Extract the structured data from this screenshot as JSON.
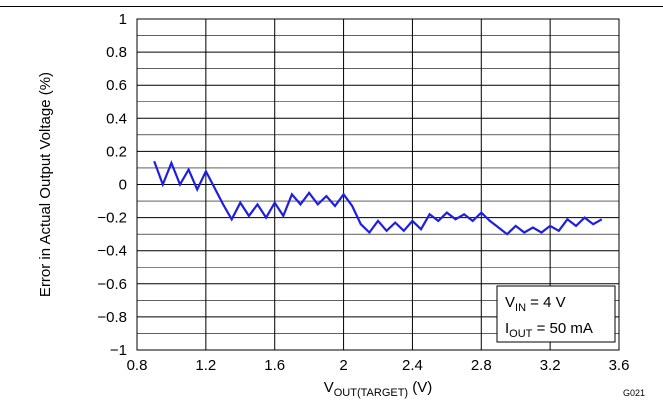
{
  "chart_data": {
    "type": "line",
    "title": "",
    "xlabel": {
      "main": "V",
      "sub": "OUT(TARGET)",
      "unit": " (V)"
    },
    "ylabel": "Error in Actual Output Voltage (%)",
    "xlim": [
      0.8,
      3.6
    ],
    "ylim": [
      -1,
      1
    ],
    "x_ticks": [
      0.8,
      1.2,
      1.6,
      2,
      2.4,
      2.8,
      3.2,
      3.6
    ],
    "x_tick_labels": [
      "0.8",
      "1.2",
      "1.6",
      "2",
      "2.4",
      "2.8",
      "3.2",
      "3.6"
    ],
    "y_ticks": [
      -1,
      -0.8,
      -0.6,
      -0.4,
      -0.2,
      0,
      0.2,
      0.4,
      0.6,
      0.8,
      1
    ],
    "y_tick_labels": [
      "−1",
      "−0.8",
      "−0.6",
      "−0.4",
      "−0.2",
      "0",
      "0.2",
      "0.4",
      "0.6",
      "0.8",
      "1"
    ],
    "minor_y_grid": true,
    "grid": true,
    "color": "#1f1fe0",
    "annotations": [
      {
        "main": "V",
        "sub": "IN",
        "rest": " = 4 V"
      },
      {
        "main": "I",
        "sub": "OUT",
        "rest": " = 50 mA"
      }
    ],
    "figure_code": "G021",
    "series": [
      {
        "x": [
          0.9,
          0.95,
          1.0,
          1.05,
          1.1,
          1.15,
          1.2,
          1.25,
          1.3,
          1.35,
          1.4,
          1.45,
          1.5,
          1.55,
          1.6,
          1.65,
          1.7,
          1.75,
          1.8,
          1.85,
          1.9,
          1.95,
          2.0,
          2.05,
          2.1,
          2.15,
          2.2,
          2.25,
          2.3,
          2.35,
          2.4,
          2.45,
          2.5,
          2.55,
          2.6,
          2.65,
          2.7,
          2.75,
          2.8,
          2.85,
          2.9,
          2.95,
          3.0,
          3.05,
          3.1,
          3.15,
          3.2,
          3.25,
          3.3,
          3.35,
          3.4,
          3.45,
          3.5
        ],
        "y": [
          0.14,
          0.0,
          0.13,
          0.0,
          0.09,
          -0.03,
          0.08,
          -0.02,
          -0.12,
          -0.21,
          -0.11,
          -0.19,
          -0.12,
          -0.2,
          -0.11,
          -0.19,
          -0.06,
          -0.12,
          -0.05,
          -0.12,
          -0.07,
          -0.13,
          -0.06,
          -0.13,
          -0.24,
          -0.29,
          -0.22,
          -0.28,
          -0.23,
          -0.28,
          -0.22,
          -0.27,
          -0.18,
          -0.22,
          -0.17,
          -0.21,
          -0.18,
          -0.22,
          -0.17,
          -0.22,
          -0.26,
          -0.3,
          -0.25,
          -0.29,
          -0.26,
          -0.29,
          -0.25,
          -0.28,
          -0.21,
          -0.25,
          -0.2,
          -0.24,
          -0.21
        ]
      }
    ]
  }
}
